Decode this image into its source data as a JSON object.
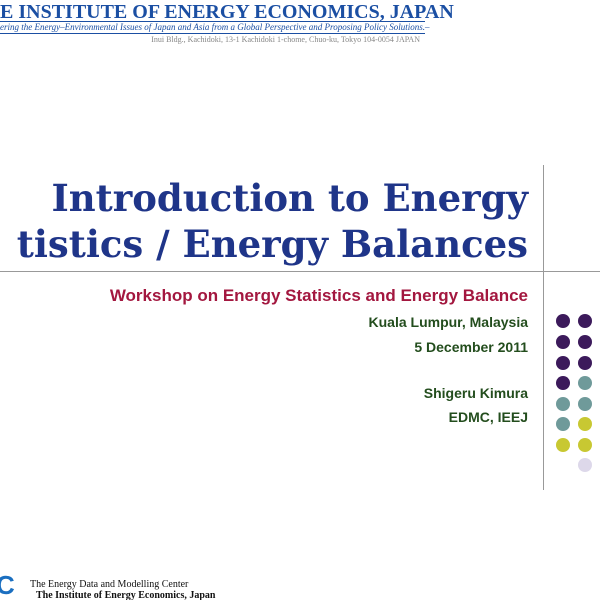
{
  "header": {
    "title": "E INSTITUTE OF ENERGY ECONOMICS, JAPAN",
    "tagline": "ering the Energy–Environmental Issues of Japan and Asia from a Global Perspective and Proposing Policy Solutions.–",
    "address": "Inui Bldg., Kachidoki, 13-1 Kachidoki 1-chome, Chuo-ku, Tokyo 104-0054 JAPAN"
  },
  "slide": {
    "title_lines": [
      "Introduction to Energy",
      "tistics / Energy Balances"
    ],
    "subtitle": "Workshop on Energy Statistics and Energy Balance",
    "details": [
      "Kuala Lumpur, Malaysia",
      "5 December 2011",
      "Shigeru Kimura",
      "EDMC, IEEJ"
    ]
  },
  "footer": {
    "logo": "C",
    "lines": [
      "The Energy Data and Modelling Center",
      "The Institute of Energy Economics, Japan"
    ]
  }
}
